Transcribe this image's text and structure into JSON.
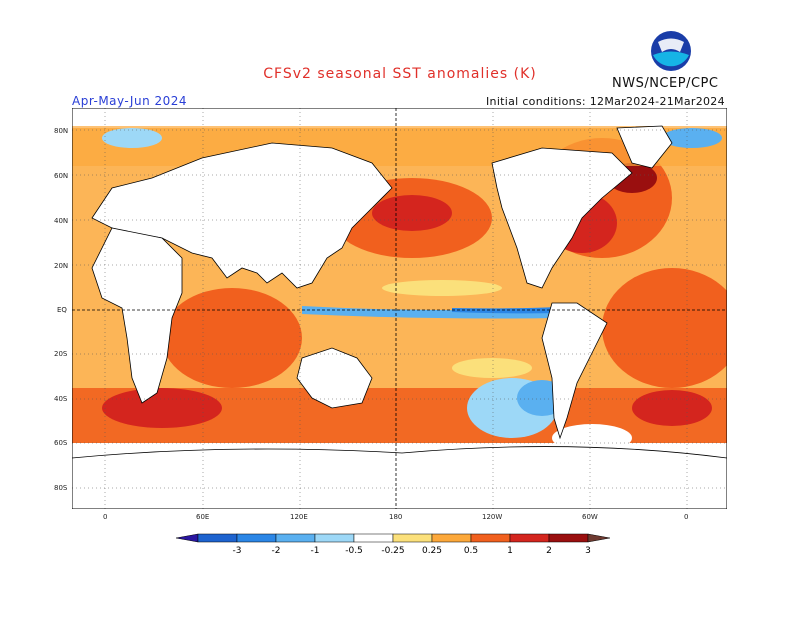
{
  "header": {
    "title": "CFSv2 seasonal SST anomalies (K)",
    "agency": "NWS/NCEP/CPC",
    "season": "Apr-May-Jun 2024",
    "initial_conditions": "Initial conditions: 12Mar2024-21Mar2024",
    "logo_text": "NOAA"
  },
  "axes": {
    "lat_labels": [
      "80N",
      "60N",
      "40N",
      "20N",
      "EQ",
      "20S",
      "40S",
      "60S",
      "80S"
    ],
    "lon_labels": [
      "0",
      "60E",
      "120E",
      "180",
      "120W",
      "60W",
      "0"
    ]
  },
  "colorbar": {
    "ticks": [
      "-3",
      "-2",
      "-1",
      "-0.5",
      "-0.25",
      "0.25",
      "0.5",
      "1",
      "2",
      "3"
    ],
    "colors": [
      "#2a16a0",
      "#1d63cf",
      "#2b86e6",
      "#5ab0f0",
      "#9dd8f7",
      "#ffffff",
      "#fbe07b",
      "#fca83a",
      "#f1601e",
      "#d4251e",
      "#9a0f0f",
      "#6e3a30"
    ]
  }
}
